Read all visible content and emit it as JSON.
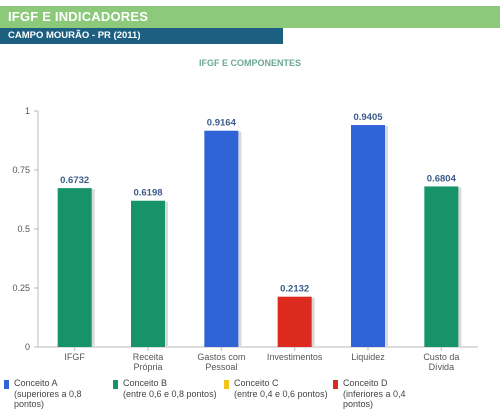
{
  "header": {
    "title": "IFGF E INDICADORES",
    "subtitle": "CAMPO MOURÃO - PR (2011)"
  },
  "colors": {
    "header_green": "#8cc97a",
    "subheader_blue": "#1c5f80",
    "concept_a": "#2f63d6",
    "concept_b": "#17936a",
    "concept_c": "#f2c318",
    "concept_d": "#dc2a1f"
  },
  "chart_data": {
    "type": "bar",
    "title": "IFGF E COMPONENTES",
    "categories": [
      [
        "IFGF"
      ],
      [
        "Receita",
        "Própria"
      ],
      [
        "Gastos com",
        "Pessoal"
      ],
      [
        "Investimentos"
      ],
      [
        "Liquidez"
      ],
      [
        "Custo da",
        "Dívida"
      ]
    ],
    "values": [
      0.6732,
      0.6198,
      0.9164,
      0.2132,
      0.9405,
      0.6804
    ],
    "value_labels": [
      "0.6732",
      "0.6198",
      "0.9164",
      "0.2132",
      "0.9405",
      "0.6804"
    ],
    "bar_colors": [
      "#17936a",
      "#17936a",
      "#2f63d6",
      "#dc2a1f",
      "#2f63d6",
      "#17936a"
    ],
    "ylim": [
      0,
      1
    ],
    "yticks": [
      0,
      0.25,
      0.5,
      0.75,
      1
    ],
    "ytick_labels": [
      "0",
      "0.25",
      "0.5",
      "0.75",
      "1"
    ],
    "xlabel": "",
    "ylabel": "",
    "grid": false,
    "legend_position": "bottom"
  },
  "legend": {
    "items": [
      {
        "lines": [
          "Conceito A",
          "(superiores a 0,8",
          "pontos)"
        ],
        "color": "#2f63d6"
      },
      {
        "lines": [
          "Conceito B",
          "(entre 0,6 e 0,8 pontos)"
        ],
        "color": "#17936a"
      },
      {
        "lines": [
          "Conceito C",
          "(entre 0,4 e 0,6 pontos)"
        ],
        "color": "#f2c318"
      },
      {
        "lines": [
          "Conceito D",
          "(inferiores a 0,4",
          "pontos)"
        ],
        "color": "#dc2a1f"
      }
    ]
  }
}
